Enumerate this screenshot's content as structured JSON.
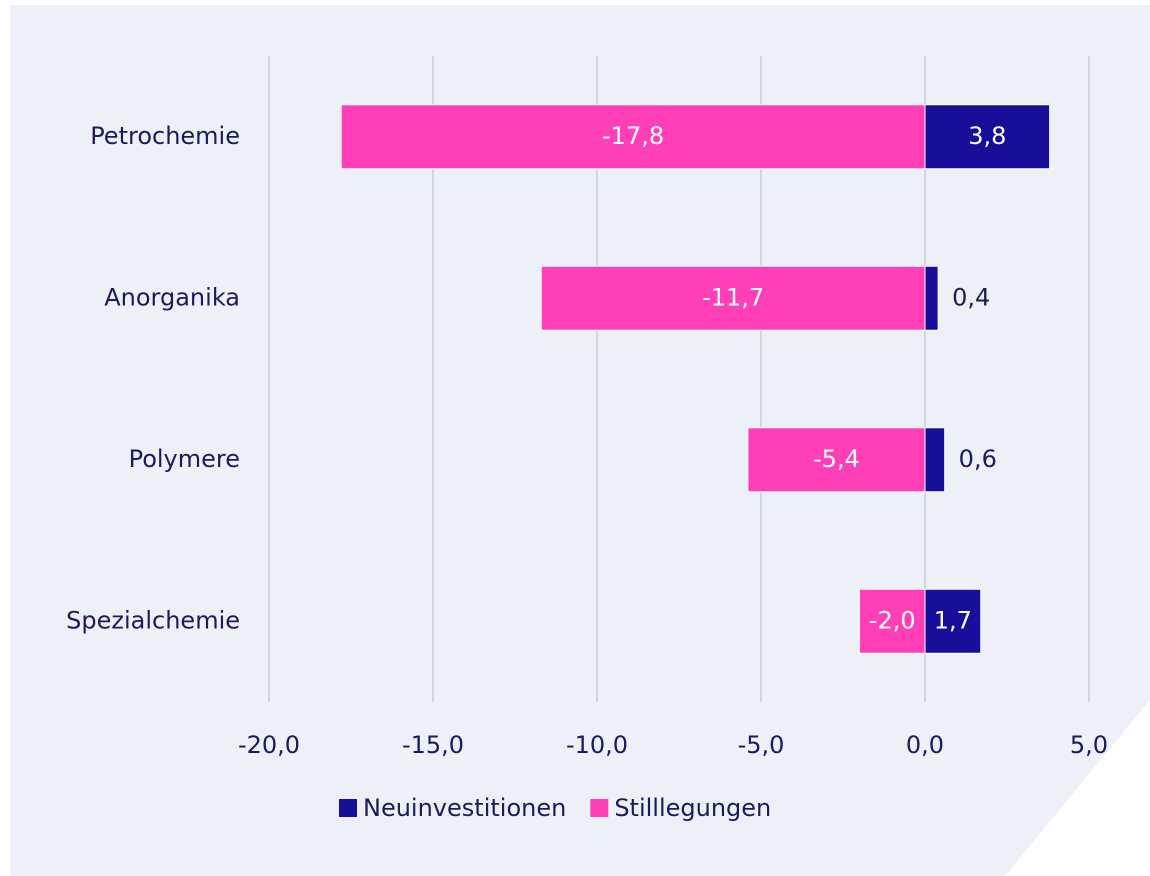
{
  "chart_data": {
    "type": "diverging_bar",
    "categories": [
      "Petrochemie",
      "Anorganika",
      "Polymere",
      "Spezialchemie"
    ],
    "series": [
      {
        "name": "Neuinvestitionen",
        "color": "#170e9a",
        "values": [
          3.8,
          0.4,
          0.6,
          1.7
        ],
        "value_labels": [
          "3,8",
          "0,4",
          "0,6",
          "1,7"
        ]
      },
      {
        "name": "Stilllegungen",
        "color": "#ff3fb8",
        "values": [
          -17.8,
          -11.7,
          -5.4,
          -2.0
        ],
        "value_labels": [
          "-17,8",
          "-11,7",
          "-5,4",
          "-2,0"
        ]
      }
    ],
    "xlim": [
      -20,
      5
    ],
    "xticks": [
      {
        "value": -20,
        "label": "-20,0"
      },
      {
        "value": -15,
        "label": "-15,0"
      },
      {
        "value": -10,
        "label": "-10,0"
      },
      {
        "value": -5,
        "label": "-5,0"
      },
      {
        "value": 0,
        "label": "0,0"
      },
      {
        "value": 5,
        "label": "5,0"
      }
    ],
    "grid": true
  }
}
